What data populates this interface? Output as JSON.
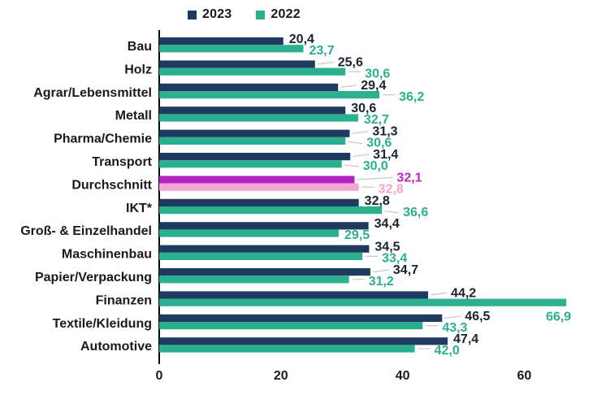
{
  "chart_data": {
    "type": "bar",
    "orientation": "horizontal",
    "title": "",
    "legend": {
      "position": "top"
    },
    "categories": [
      "Bau",
      "Holz",
      "Agrar/Lebensmittel",
      "Metall",
      "Pharma/Chemie",
      "Transport",
      "Durchschnitt",
      "IKT*",
      "Groß- & Einzelhandel",
      "Maschinenbau",
      "Papier/Verpackung",
      "Finanzen",
      "Textile/Kleidung",
      "Automotive"
    ],
    "series": [
      {
        "name": "2023",
        "color": "#1F3A5F",
        "values": [
          20.4,
          25.6,
          29.4,
          30.6,
          31.3,
          31.4,
          32.1,
          32.8,
          34.4,
          34.5,
          34.7,
          44.2,
          46.5,
          47.4
        ]
      },
      {
        "name": "2022",
        "color": "#2BB08F",
        "values": [
          23.7,
          30.6,
          36.2,
          32.7,
          30.6,
          30.0,
          32.8,
          36.6,
          29.5,
          33.4,
          31.2,
          66.9,
          43.3,
          42.0
        ]
      }
    ],
    "value_labels": {
      "2023": [
        "20,4",
        "25,6",
        "29,4",
        "30,6",
        "31,3",
        "31,4",
        "32,1",
        "32,8",
        "34,4",
        "34,5",
        "34,7",
        "44,2",
        "46,5",
        "47,4"
      ],
      "2022": [
        "23,7",
        "30,6",
        "36,2",
        "32,7",
        "30,6",
        "30,0",
        "32,8",
        "36,6",
        "29,5",
        "33,4",
        "31,2",
        "66,9",
        "43,3",
        "42,0"
      ]
    },
    "highlight": {
      "category": "Durchschnitt",
      "index": 6,
      "bar_color_2023": "#B124C0",
      "bar_color_2022": "#F1A6D4",
      "label_color_2023": "#BE25C3",
      "label_color_2022": "#F4A3D5"
    },
    "x_ticks": [
      0,
      20,
      40,
      60
    ],
    "xlim": [
      0,
      70
    ],
    "grid": false,
    "decimal_separator": ",",
    "colors": {
      "label_2023": "#1B2130",
      "label_2022": "#2BB08F",
      "leader_line": "#C9C9C9",
      "axis_line": "#000000",
      "text": "#1A1A1A",
      "background": "#FFFFFF"
    },
    "callouts": {
      "2023": [
        "none",
        "diag",
        "diag",
        "none",
        "diag",
        "diag",
        "diag-far",
        "none",
        "none",
        "none",
        "diag",
        "diag",
        "diag",
        "none"
      ],
      "2022": [
        "none",
        "dash",
        "dash",
        "none",
        "diag",
        "diag",
        "dash",
        "diag",
        "none",
        "dash",
        "dash",
        "below",
        "dash",
        "dash"
      ]
    }
  }
}
